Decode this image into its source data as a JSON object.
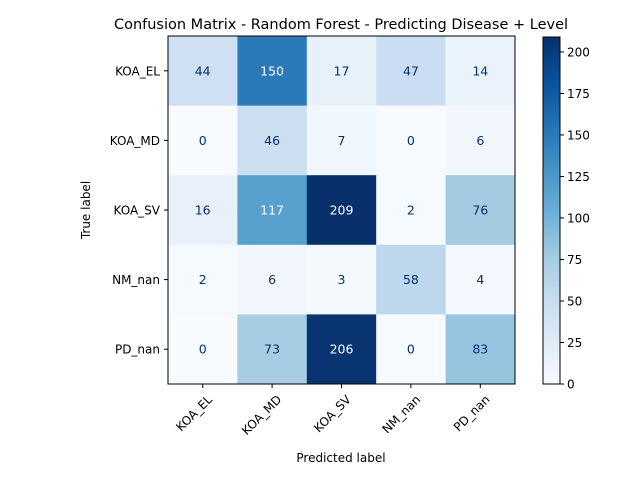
{
  "chart_data": {
    "type": "heatmap",
    "title": "Confusion Matrix - Random Forest - Predicting Disease + Level",
    "xlabel": "Predicted label",
    "ylabel": "True label",
    "row_labels": [
      "KOA_EL",
      "KOA_MD",
      "KOA_SV",
      "NM_nan",
      "PD_nan"
    ],
    "col_labels": [
      "KOA_EL",
      "KOA_MD",
      "KOA_SV",
      "NM_nan",
      "PD_nan"
    ],
    "matrix": [
      [
        44,
        150,
        17,
        47,
        14
      ],
      [
        0,
        46,
        7,
        0,
        6
      ],
      [
        16,
        117,
        209,
        2,
        76
      ],
      [
        2,
        6,
        3,
        58,
        4
      ],
      [
        0,
        73,
        206,
        0,
        83
      ]
    ],
    "colormap": "Blues",
    "colorbar": {
      "min": 0,
      "max": 209,
      "ticks": [
        0,
        25,
        50,
        75,
        100,
        125,
        150,
        175,
        200
      ]
    },
    "grid": false,
    "text_color_light": "#ffffff",
    "text_color_dark": "#08306b"
  }
}
